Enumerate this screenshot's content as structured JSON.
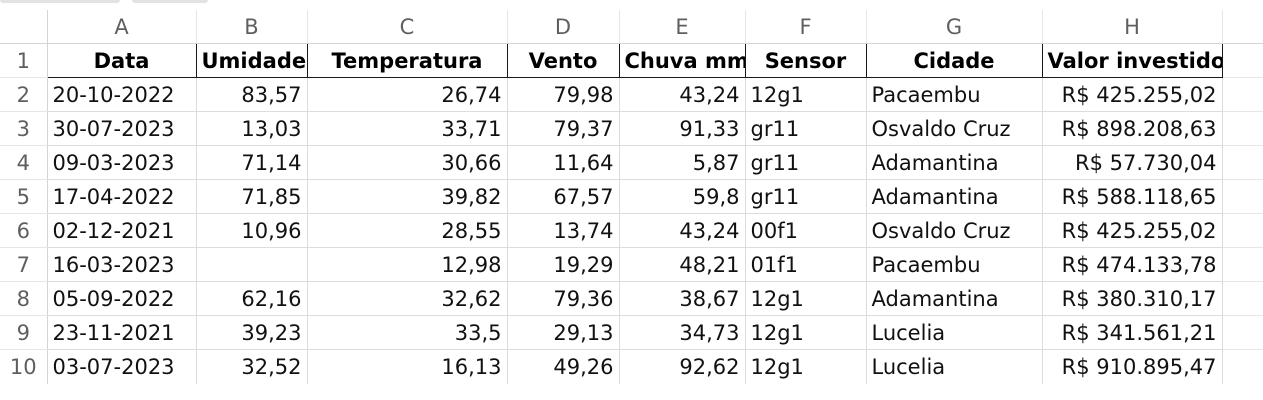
{
  "spreadsheet": {
    "columns": [
      "A",
      "B",
      "C",
      "D",
      "E",
      "F",
      "G",
      "H"
    ],
    "rows": [
      {
        "num": "1",
        "cells": [
          "Data",
          "Umidade",
          "Temperatura",
          "Vento",
          "Chuva mm",
          "Sensor",
          "Cidade",
          "Valor investido"
        ]
      },
      {
        "num": "2",
        "cells": [
          "20-10-2022",
          "83,57",
          "26,74",
          "79,98",
          "43,24",
          "12g1",
          "Pacaembu",
          "R$ 425.255,02"
        ]
      },
      {
        "num": "3",
        "cells": [
          "30-07-2023",
          "13,03",
          "33,71",
          "79,37",
          "91,33",
          "gr11",
          "Osvaldo Cruz",
          "R$ 898.208,63"
        ]
      },
      {
        "num": "4",
        "cells": [
          "09-03-2023",
          "71,14",
          "30,66",
          "11,64",
          "5,87",
          "gr11",
          "Adamantina",
          "R$ 57.730,04"
        ]
      },
      {
        "num": "5",
        "cells": [
          "17-04-2022",
          "71,85",
          "39,82",
          "67,57",
          "59,8",
          "gr11",
          "Adamantina",
          "R$ 588.118,65"
        ]
      },
      {
        "num": "6",
        "cells": [
          "02-12-2021",
          "10,96",
          "28,55",
          "13,74",
          "43,24",
          "00f1",
          "Osvaldo Cruz",
          "R$ 425.255,02"
        ]
      },
      {
        "num": "7",
        "cells": [
          "16-03-2023",
          "",
          "12,98",
          "19,29",
          "48,21",
          "01f1",
          "Pacaembu",
          "R$ 474.133,78"
        ]
      },
      {
        "num": "8",
        "cells": [
          "05-09-2022",
          "62,16",
          "32,62",
          "79,36",
          "38,67",
          "12g1",
          "Adamantina",
          "R$ 380.310,17"
        ]
      },
      {
        "num": "9",
        "cells": [
          "23-11-2021",
          "39,23",
          "33,5",
          "29,13",
          "34,73",
          "12g1",
          "Lucelia",
          "R$ 341.561,21"
        ]
      },
      {
        "num": "10",
        "cells": [
          "03-07-2023",
          "32,52",
          "16,13",
          "49,26",
          "92,62",
          "12g1",
          "Lucelia",
          "R$ 910.895,47"
        ]
      }
    ]
  }
}
